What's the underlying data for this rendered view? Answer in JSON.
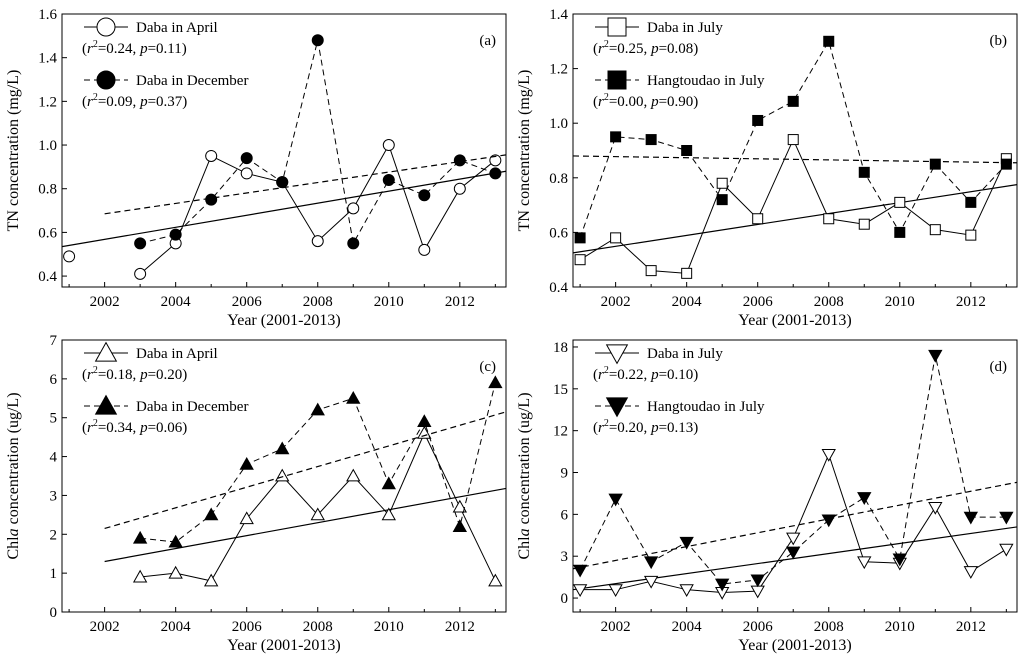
{
  "chart_data": [
    {
      "id": "a",
      "type": "line",
      "panel_label": "(a)",
      "xlabel": "Year (2001-2013)",
      "ylabel": "TN concentration (mg/L)",
      "xlim": [
        2000.8,
        2013.3
      ],
      "ylim": [
        0.35,
        1.6
      ],
      "xticks": [
        2002,
        2004,
        2006,
        2008,
        2010,
        2012
      ],
      "yticks": [
        0.4,
        0.6,
        0.8,
        1.0,
        1.2,
        1.4,
        1.6
      ],
      "ytick_labels": [
        "0.4",
        "0.6",
        "0.8",
        "1.0",
        "1.2",
        "1.4",
        "1.6"
      ],
      "series": [
        {
          "name": "Daba in April",
          "stats": "(r²=0.24, p=0.11)",
          "marker": "circle",
          "fill": "open",
          "line": "solid",
          "x": [
            2001,
            2003,
            2004,
            2005,
            2006,
            2007,
            2008,
            2009,
            2010,
            2011,
            2012,
            2013
          ],
          "y": [
            0.49,
            0.41,
            0.55,
            0.95,
            0.87,
            0.83,
            0.56,
            0.71,
            1.0,
            0.52,
            0.8,
            0.93
          ],
          "break_after_first": true,
          "trend": [
            [
              2000.8,
              0.535
            ],
            [
              2013.3,
              0.88
            ]
          ]
        },
        {
          "name": "Daba in December",
          "stats": "(r²=0.09, p=0.37)",
          "marker": "circle",
          "fill": "solid",
          "line": "dashed",
          "x": [
            2003,
            2004,
            2005,
            2006,
            2007,
            2008,
            2009,
            2010,
            2011,
            2012,
            2013
          ],
          "y": [
            0.55,
            0.59,
            0.75,
            0.94,
            0.83,
            1.48,
            0.55,
            0.84,
            0.77,
            0.93,
            0.87
          ],
          "trend": [
            [
              2002,
              0.685
            ],
            [
              2013.3,
              0.955
            ]
          ]
        }
      ]
    },
    {
      "id": "b",
      "type": "line",
      "panel_label": "(b)",
      "xlabel": "Year (2001-2013)",
      "ylabel": "TN concentration (mg/L)",
      "xlim": [
        2000.8,
        2013.3
      ],
      "ylim": [
        0.4,
        1.4
      ],
      "xticks": [
        2002,
        2004,
        2006,
        2008,
        2010,
        2012
      ],
      "yticks": [
        0.4,
        0.6,
        0.8,
        1.0,
        1.2,
        1.4
      ],
      "ytick_labels": [
        "0.4",
        "0.6",
        "0.8",
        "1.0",
        "1.2",
        "1.4"
      ],
      "series": [
        {
          "name": "Daba in July",
          "stats": "(r²=0.25, p=0.08)",
          "marker": "square",
          "fill": "open",
          "line": "solid",
          "x": [
            2001,
            2002,
            2003,
            2004,
            2005,
            2006,
            2007,
            2008,
            2009,
            2010,
            2011,
            2012,
            2013
          ],
          "y": [
            0.5,
            0.58,
            0.46,
            0.45,
            0.78,
            0.65,
            0.94,
            0.65,
            0.63,
            0.71,
            0.61,
            0.59,
            0.87
          ],
          "trend": [
            [
              2000.8,
              0.525
            ],
            [
              2013.3,
              0.775
            ]
          ]
        },
        {
          "name": "Hangtoudao in July",
          "stats": "(r²=0.00, p=0.90)",
          "marker": "square",
          "fill": "solid",
          "line": "dashed",
          "x": [
            2001,
            2002,
            2003,
            2004,
            2005,
            2006,
            2007,
            2008,
            2009,
            2010,
            2011,
            2012,
            2013
          ],
          "y": [
            0.58,
            0.95,
            0.94,
            0.9,
            0.72,
            1.01,
            1.08,
            1.3,
            0.82,
            0.6,
            0.85,
            0.71,
            0.85
          ],
          "trend": [
            [
              2000.8,
              0.88
            ],
            [
              2013.3,
              0.855
            ]
          ]
        }
      ]
    },
    {
      "id": "c",
      "type": "line",
      "panel_label": "(c)",
      "xlabel": "Year (2001-2013)",
      "ylabel": "Chla concentration (ug/L)",
      "xlim": [
        2000.8,
        2013.3
      ],
      "ylim": [
        0,
        7
      ],
      "xticks": [
        2002,
        2004,
        2006,
        2008,
        2010,
        2012
      ],
      "yticks": [
        0,
        1,
        2,
        3,
        4,
        5,
        6,
        7
      ],
      "ytick_labels": [
        "0",
        "1",
        "2",
        "3",
        "4",
        "5",
        "6",
        "7"
      ],
      "series": [
        {
          "name": "Daba in April",
          "stats": "(r²=0.18, p=0.20)",
          "marker": "triangle-up",
          "fill": "open",
          "line": "solid",
          "x": [
            2003,
            2004,
            2005,
            2006,
            2007,
            2008,
            2009,
            2010,
            2011,
            2012,
            2013
          ],
          "y": [
            0.9,
            1.0,
            0.8,
            2.4,
            3.5,
            2.5,
            3.5,
            2.5,
            4.6,
            2.7,
            0.8
          ],
          "trend": [
            [
              2002,
              1.3
            ],
            [
              2013.3,
              3.18
            ]
          ]
        },
        {
          "name": "Daba in December",
          "stats": "(r²=0.34, p=0.06)",
          "marker": "triangle-up",
          "fill": "solid",
          "line": "dashed",
          "x": [
            2003,
            2004,
            2005,
            2006,
            2007,
            2008,
            2009,
            2010,
            2011,
            2012,
            2013
          ],
          "y": [
            1.9,
            1.8,
            2.5,
            3.8,
            4.2,
            5.2,
            5.5,
            3.3,
            4.9,
            2.2,
            5.9
          ],
          "trend": [
            [
              2002,
              2.15
            ],
            [
              2013.3,
              5.15
            ]
          ]
        }
      ]
    },
    {
      "id": "d",
      "type": "line",
      "panel_label": "(d)",
      "xlabel": "Year (2001-2013)",
      "ylabel": "Chla concentration (ug/L)",
      "xlim": [
        2000.8,
        2013.3
      ],
      "ylim": [
        -1,
        18.5
      ],
      "xticks": [
        2002,
        2004,
        2006,
        2008,
        2010,
        2012
      ],
      "yticks": [
        0,
        3,
        6,
        9,
        12,
        15,
        18
      ],
      "ytick_labels": [
        "0",
        "3",
        "6",
        "9",
        "12",
        "15",
        "18"
      ],
      "series": [
        {
          "name": "Daba in July",
          "stats": "(r²=0.22, p=0.10)",
          "marker": "triangle-down",
          "fill": "open",
          "line": "solid",
          "x": [
            2001,
            2002,
            2003,
            2004,
            2005,
            2006,
            2007,
            2008,
            2009,
            2010,
            2011,
            2012,
            2013
          ],
          "y": [
            0.6,
            0.6,
            1.2,
            0.6,
            0.4,
            0.5,
            4.3,
            10.3,
            2.6,
            2.5,
            6.5,
            1.9,
            3.5
          ],
          "trend": [
            [
              2000.8,
              0.6
            ],
            [
              2013.3,
              5.1
            ]
          ]
        },
        {
          "name": "Hangtoudao in July",
          "stats": "(r²=0.20, p=0.13)",
          "marker": "triangle-down",
          "fill": "solid",
          "line": "dashed",
          "x": [
            2001,
            2002,
            2003,
            2004,
            2005,
            2006,
            2007,
            2008,
            2009,
            2010,
            2011,
            2012,
            2013
          ],
          "y": [
            2.0,
            7.1,
            2.6,
            4.0,
            1.0,
            1.3,
            3.3,
            5.6,
            7.2,
            2.8,
            17.4,
            5.8,
            5.8
          ],
          "trend": [
            [
              2000.8,
              2.1
            ],
            [
              2013.3,
              8.3
            ]
          ]
        }
      ]
    }
  ]
}
